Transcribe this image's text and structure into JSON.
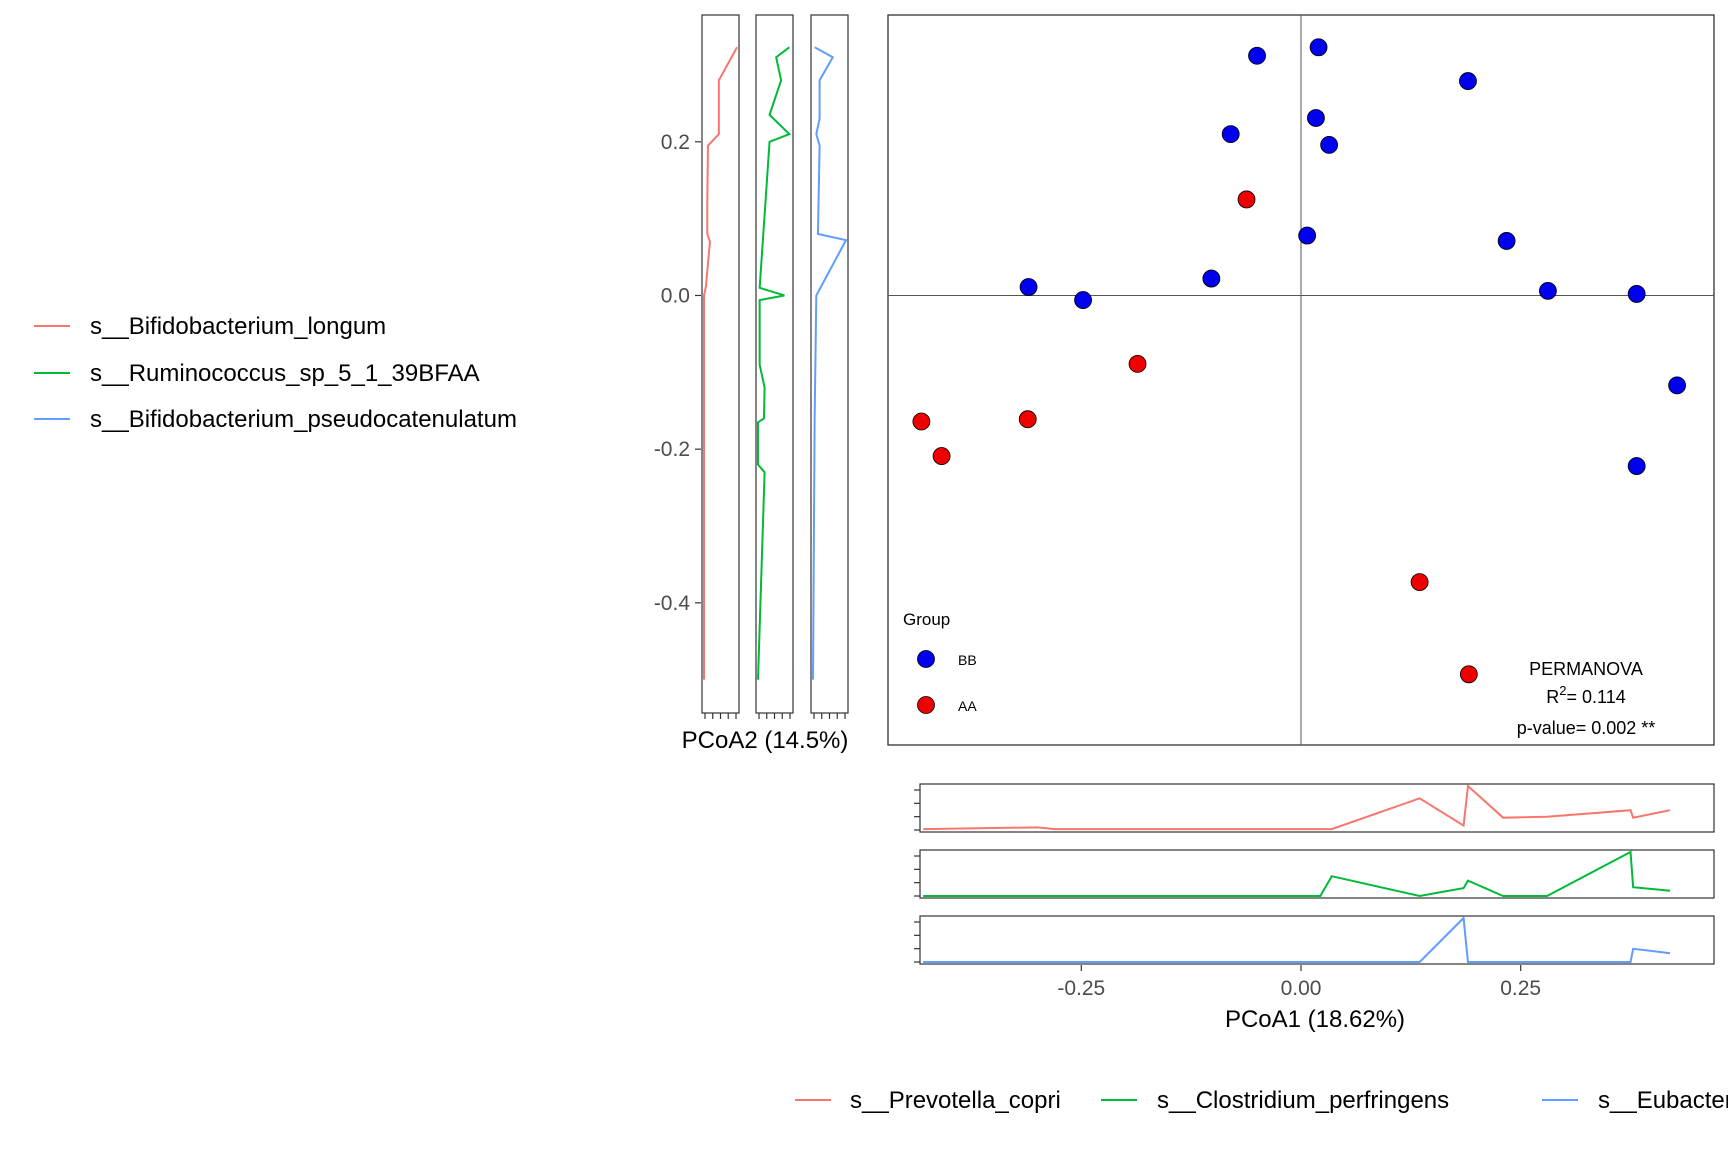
{
  "chart_data": [
    {
      "type": "scatter",
      "xlabel": "PCoA1 (18.62%)",
      "ylabel": "PCoA2 (14.5%)",
      "xlim": [
        -0.47,
        0.47
      ],
      "ylim": [
        -0.585,
        0.365
      ],
      "x_ticks": [
        -0.25,
        0.0,
        0.25
      ],
      "x_tick_labels": [
        "-0.25",
        "0.00",
        "0.25"
      ],
      "y_ticks": [
        0.2,
        0.0,
        -0.2,
        -0.4
      ],
      "y_tick_labels": [
        "0.2",
        "0.0",
        "-0.2",
        "-0.4"
      ],
      "reference_lines": {
        "x": 0,
        "y": 0
      },
      "grid": false,
      "legend": {
        "title": "Group",
        "position": "bottom-left",
        "entries": [
          {
            "label": "BB",
            "color": "#0000ee"
          },
          {
            "label": "AA",
            "color": "#ee0000"
          }
        ]
      },
      "annotation": {
        "line1": "PERMANOVA",
        "r2_prefix": "R",
        "r2_sup": "2",
        "r2_suffix": "= 0.114",
        "line3": "p-value= 0.002 **",
        "position": "bottom-right"
      },
      "series": [
        {
          "name": "BB",
          "color": "#0000ee",
          "points": [
            [
              -0.05,
              0.312
            ],
            [
              0.02,
              0.323
            ],
            [
              -0.08,
              0.21
            ],
            [
              0.017,
              0.231
            ],
            [
              0.032,
              0.196
            ],
            [
              0.19,
              0.279
            ],
            [
              0.007,
              0.078
            ],
            [
              -0.102,
              0.022
            ],
            [
              -0.31,
              0.011
            ],
            [
              -0.248,
              -0.006
            ],
            [
              0.234,
              0.071
            ],
            [
              0.281,
              0.006
            ],
            [
              0.382,
              0.002
            ],
            [
              0.428,
              -0.117
            ],
            [
              0.382,
              -0.222
            ]
          ]
        },
        {
          "name": "AA",
          "color": "#ee0000",
          "points": [
            [
              -0.062,
              0.125
            ],
            [
              -0.186,
              -0.089
            ],
            [
              -0.432,
              -0.164
            ],
            [
              -0.311,
              -0.161
            ],
            [
              -0.409,
              -0.209
            ],
            [
              0.135,
              -0.373
            ],
            [
              0.191,
              -0.493
            ]
          ]
        }
      ]
    },
    {
      "type": "line",
      "orientation": "vertical",
      "ylabel": "PCoA2 (14.5%)",
      "legend_position": "left",
      "series": [
        {
          "name": "s__Bifidobacterium_longum",
          "color": "#f8766d",
          "points": [
            [
              0.323,
              1.0
            ],
            [
              0.28,
              0.45
            ],
            [
              0.21,
              0.45
            ],
            [
              0.195,
              0.12
            ],
            [
              0.12,
              0.1
            ],
            [
              0.08,
              0.1
            ],
            [
              0.07,
              0.18
            ],
            [
              0.012,
              0.06
            ],
            [
              0.0,
              0.0
            ],
            [
              -0.16,
              0.0
            ],
            [
              -0.5,
              0.0
            ]
          ]
        },
        {
          "name": "s__Ruminococcus_sp_5_1_39BFAA",
          "color": "#00ba38",
          "points": [
            [
              0.323,
              0.95
            ],
            [
              0.31,
              0.55
            ],
            [
              0.28,
              0.7
            ],
            [
              0.235,
              0.35
            ],
            [
              0.21,
              0.95
            ],
            [
              0.2,
              0.35
            ],
            [
              0.01,
              0.05
            ],
            [
              0.0,
              0.8
            ],
            [
              -0.006,
              0.05
            ],
            [
              -0.09,
              0.05
            ],
            [
              -0.12,
              0.2
            ],
            [
              -0.16,
              0.18
            ],
            [
              -0.165,
              0.0
            ],
            [
              -0.22,
              0.0
            ],
            [
              -0.23,
              0.2
            ],
            [
              -0.5,
              0.0
            ]
          ]
        },
        {
          "name": "s__Bifidobacterium_pseudocatenulatum",
          "color": "#619cff",
          "points": [
            [
              0.323,
              0.05
            ],
            [
              0.31,
              0.6
            ],
            [
              0.28,
              0.2
            ],
            [
              0.23,
              0.2
            ],
            [
              0.21,
              0.1
            ],
            [
              0.195,
              0.2
            ],
            [
              0.08,
              0.15
            ],
            [
              0.072,
              1.0
            ],
            [
              0.0,
              0.1
            ],
            [
              -0.16,
              0.05
            ],
            [
              -0.5,
              0.0
            ]
          ]
        }
      ]
    },
    {
      "type": "line",
      "orientation": "horizontal",
      "xlabel": "PCoA1 (18.62%)",
      "legend_position": "bottom",
      "series": [
        {
          "name": "s__Prevotella_copri",
          "color": "#f8766d",
          "points": [
            [
              -0.43,
              0.02
            ],
            [
              -0.3,
              0.06
            ],
            [
              -0.28,
              0.02
            ],
            [
              0.035,
              0.02
            ],
            [
              0.135,
              0.72
            ],
            [
              0.185,
              0.1
            ],
            [
              0.19,
              1.0
            ],
            [
              0.23,
              0.28
            ],
            [
              0.28,
              0.3
            ],
            [
              0.375,
              0.45
            ],
            [
              0.378,
              0.28
            ],
            [
              0.42,
              0.45
            ]
          ]
        },
        {
          "name": "s__Clostridium_perfringens",
          "color": "#00ba38",
          "points": [
            [
              -0.43,
              0.0
            ],
            [
              0.022,
              0.0
            ],
            [
              0.035,
              0.45
            ],
            [
              0.135,
              0.0
            ],
            [
              0.185,
              0.18
            ],
            [
              0.19,
              0.35
            ],
            [
              0.23,
              0.0
            ],
            [
              0.28,
              0.0
            ],
            [
              0.375,
              1.0
            ],
            [
              0.378,
              0.2
            ],
            [
              0.42,
              0.12
            ]
          ]
        },
        {
          "name": "s__Eubacterium",
          "color": "#619cff",
          "points": [
            [
              -0.43,
              0.0
            ],
            [
              0.135,
              0.0
            ],
            [
              0.185,
              1.0
            ],
            [
              0.19,
              0.0
            ],
            [
              0.375,
              0.0
            ],
            [
              0.378,
              0.3
            ],
            [
              0.42,
              0.2
            ]
          ]
        }
      ]
    }
  ]
}
